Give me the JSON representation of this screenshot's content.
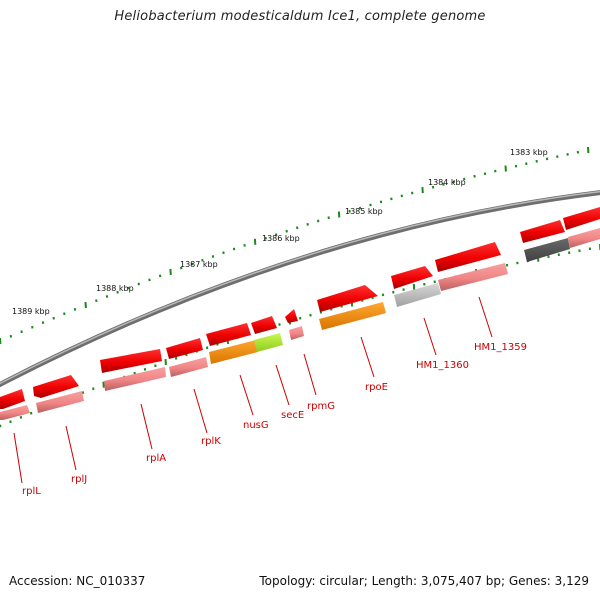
{
  "title": "Heliobacterium modesticaldum Ice1, complete genome",
  "footer": {
    "accession": "Accession: NC_010337",
    "summary": "Topology: circular; Length: 3,075,407 bp; Genes: 3,129"
  },
  "colors": {
    "cds_strand": "#ee0000",
    "rna_strand": "#f28a8a",
    "backbone": "#8c8c8c",
    "tick": "#1a8a1a",
    "label": "#cc0000",
    "nusG": "#ff8c00",
    "secE": "#a8e830",
    "rpoE": "#ff8c00",
    "hm1360": "#bbbbbb",
    "hm1359_dark": "#555555"
  },
  "kbp_labels": [
    "1383 kbp",
    "1384 kbp",
    "1385 kbp",
    "1386 kbp",
    "1387 kbp",
    "1388 kbp",
    "1389 kbp"
  ],
  "genes": [
    "rplL",
    "rplJ",
    "rplA",
    "rplK",
    "nusG",
    "secE",
    "rpmG",
    "rpoE",
    "HM1_1360",
    "HM1_1359"
  ]
}
